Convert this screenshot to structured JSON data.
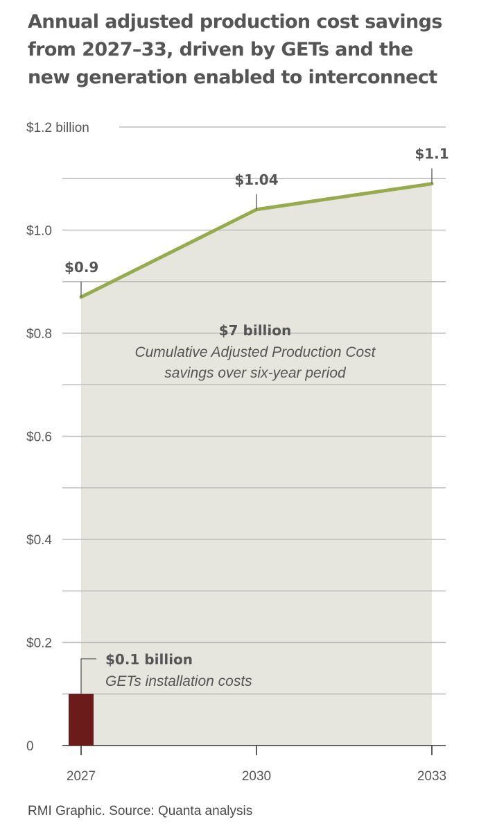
{
  "title_lines": [
    "Annual adjusted production cost savings",
    "from 2027–33, driven by GETs and the",
    "new generation enabled to interconnect"
  ],
  "footer": "RMI Graphic. Source: Quanta analysis",
  "colors": {
    "line": "#95ab4d",
    "area": "#e6e6df",
    "bar": "#6b1c1a",
    "grid": "#bdbdbd",
    "text": "#555555",
    "axis": "#333333"
  },
  "chart_data": {
    "type": "area",
    "x": [
      2027,
      2030,
      2033
    ],
    "xlim": [
      2027,
      2033
    ],
    "ylim": [
      0,
      1.2
    ],
    "y_ticks": [
      0,
      0.2,
      0.4,
      0.6,
      0.8,
      1.0,
      1.2
    ],
    "y_tick_labels": [
      "0",
      "$0.2",
      "$0.4",
      "$0.6",
      "$0.8",
      "$1.0",
      "$1.2 billion"
    ],
    "x_tick_labels": [
      "2027",
      "2030",
      "2033"
    ],
    "grid": true,
    "series": [
      {
        "values": [
          0.87,
          1.04,
          1.09
        ],
        "point_labels": [
          "$0.9",
          "$1.04",
          "$1.1"
        ]
      }
    ],
    "bar": {
      "x": 2027,
      "value": 0.1,
      "label": "$0.1 billion",
      "sublabel": "GETs installation costs"
    },
    "annotation": {
      "title": "$7 billion",
      "lines": [
        "Cumulative Adjusted Production Cost",
        "savings over six-year period"
      ]
    }
  }
}
